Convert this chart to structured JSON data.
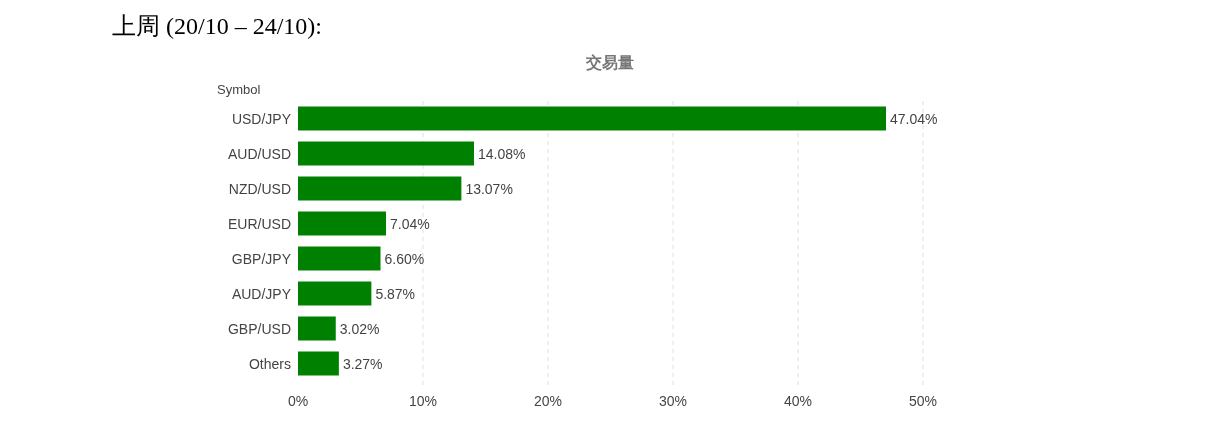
{
  "chart_data": {
    "type": "bar",
    "orientation": "horizontal",
    "title": "上周 (20/10 – 24/10):",
    "subtitle": "交易量",
    "ylabel": "Symbol",
    "categories": [
      "USD/JPY",
      "AUD/USD",
      "NZD/USD",
      "EUR/USD",
      "GBP/JPY",
      "AUD/JPY",
      "GBP/USD",
      "Others"
    ],
    "values": [
      47.04,
      14.08,
      13.07,
      7.04,
      6.6,
      5.87,
      3.02,
      3.27
    ],
    "value_labels": [
      "47.04%",
      "14.08%",
      "13.07%",
      "7.04%",
      "6.60%",
      "5.87%",
      "3.02%",
      "3.27%"
    ],
    "color": "#008000",
    "xlim": [
      0,
      50
    ],
    "xticks": [
      {
        "value": 0,
        "label": "0%"
      },
      {
        "value": 10,
        "label": "10%"
      },
      {
        "value": 20,
        "label": "20%"
      },
      {
        "value": 30,
        "label": "30%"
      },
      {
        "value": 40,
        "label": "40%"
      },
      {
        "value": 50,
        "label": "50%"
      }
    ],
    "grid": "x"
  }
}
